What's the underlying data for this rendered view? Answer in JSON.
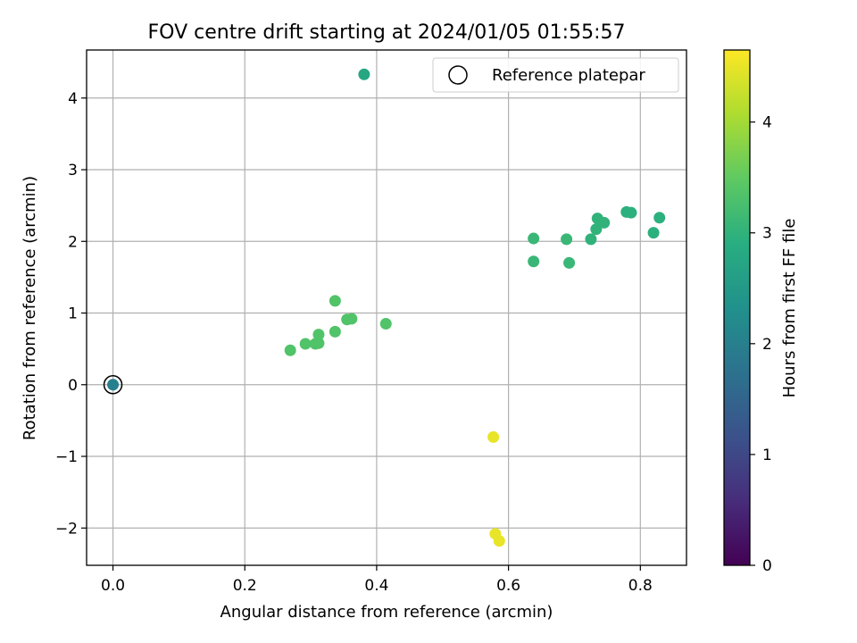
{
  "chart_data": {
    "type": "scatter",
    "title": "FOV centre drift starting at 2024/01/05 01:55:57",
    "xlabel": "Angular distance from reference (arcmin)",
    "ylabel": "Rotation from reference (arcmin)",
    "xlim": [
      -0.04,
      0.87
    ],
    "ylim": [
      -2.52,
      4.67
    ],
    "xticks": [
      0.0,
      0.2,
      0.4,
      0.6,
      0.8
    ],
    "xtick_labels": [
      "0.0",
      "0.2",
      "0.4",
      "0.6",
      "0.8"
    ],
    "yticks": [
      -2,
      -1,
      0,
      1,
      2,
      3,
      4
    ],
    "ytick_labels": [
      "−2",
      "−1",
      "0",
      "1",
      "2",
      "3",
      "4"
    ],
    "grid": true,
    "legend": {
      "position": "top-right",
      "entries": [
        "Reference platepar"
      ]
    },
    "colorbar": {
      "label": "Hours from first FF file",
      "colormap": "viridis",
      "range": [
        0,
        4.65
      ],
      "ticks": [
        0,
        1,
        2,
        3,
        4
      ],
      "tick_labels": [
        "0",
        "1",
        "2",
        "3",
        "4"
      ]
    },
    "reference_point": {
      "x": 0.0,
      "y": 0.0
    },
    "points": [
      {
        "x": 0.0,
        "y": 0.0,
        "hours": 2.0
      },
      {
        "x": 0.381,
        "y": 4.33,
        "hours": 2.75
      },
      {
        "x": 0.269,
        "y": 0.48,
        "hours": 3.35
      },
      {
        "x": 0.292,
        "y": 0.57,
        "hours": 3.35
      },
      {
        "x": 0.307,
        "y": 0.57,
        "hours": 3.35
      },
      {
        "x": 0.312,
        "y": 0.58,
        "hours": 3.35
      },
      {
        "x": 0.312,
        "y": 0.7,
        "hours": 3.35
      },
      {
        "x": 0.337,
        "y": 0.74,
        "hours": 3.35
      },
      {
        "x": 0.337,
        "y": 1.17,
        "hours": 3.35
      },
      {
        "x": 0.355,
        "y": 0.91,
        "hours": 3.35
      },
      {
        "x": 0.362,
        "y": 0.92,
        "hours": 3.35
      },
      {
        "x": 0.414,
        "y": 0.85,
        "hours": 3.35
      },
      {
        "x": 0.638,
        "y": 2.04,
        "hours": 3.1
      },
      {
        "x": 0.638,
        "y": 1.72,
        "hours": 3.1
      },
      {
        "x": 0.688,
        "y": 2.03,
        "hours": 3.1
      },
      {
        "x": 0.692,
        "y": 1.7,
        "hours": 3.1
      },
      {
        "x": 0.725,
        "y": 2.03,
        "hours": 3.0
      },
      {
        "x": 0.733,
        "y": 2.17,
        "hours": 3.0
      },
      {
        "x": 0.735,
        "y": 2.32,
        "hours": 3.0
      },
      {
        "x": 0.745,
        "y": 2.26,
        "hours": 3.0
      },
      {
        "x": 0.779,
        "y": 2.41,
        "hours": 2.95
      },
      {
        "x": 0.786,
        "y": 2.4,
        "hours": 2.95
      },
      {
        "x": 0.82,
        "y": 2.12,
        "hours": 2.95
      },
      {
        "x": 0.829,
        "y": 2.33,
        "hours": 2.95
      },
      {
        "x": 0.577,
        "y": -0.73,
        "hours": 4.5
      },
      {
        "x": 0.58,
        "y": -2.08,
        "hours": 4.5
      },
      {
        "x": 0.586,
        "y": -2.18,
        "hours": 4.5
      }
    ]
  }
}
